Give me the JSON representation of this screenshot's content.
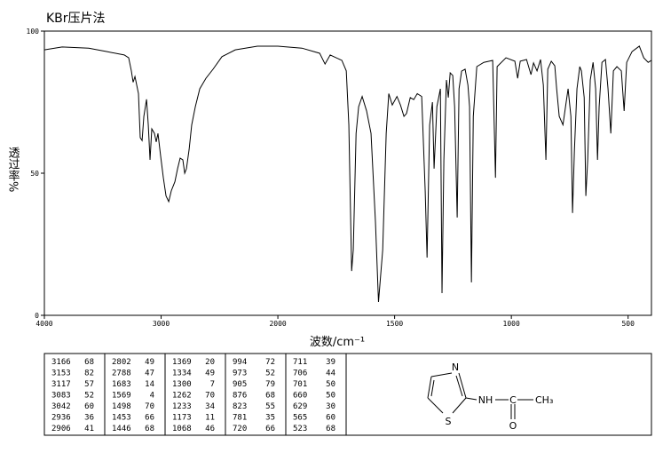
{
  "chart_data": {
    "type": "line",
    "title": "KBr压片法",
    "x_label": "波数/cm⁻¹",
    "y_label": "透过率%",
    "color": "#000000",
    "xlim": [
      4000,
      400
    ],
    "ylim": [
      0,
      100
    ],
    "x_scale_change": 2000,
    "xticks": [
      4000,
      3000,
      2000,
      1500,
      1000,
      500
    ],
    "yticks": [
      0,
      50,
      100
    ],
    "x": [
      4000,
      3848,
      3620,
      3468,
      3316,
      3278,
      3255,
      3240,
      3224,
      3194,
      3179,
      3163,
      3148,
      3125,
      3110,
      3095,
      3080,
      3057,
      3042,
      3027,
      3004,
      2981,
      2958,
      2935,
      2913,
      2882,
      2859,
      2837,
      2814,
      2798,
      2783,
      2760,
      2738,
      2707,
      2669,
      2616,
      2555,
      2479,
      2365,
      2175,
      2000,
      1897,
      1821,
      1798,
      1776,
      1726,
      1707,
      1696,
      1684,
      1677,
      1665,
      1654,
      1639,
      1620,
      1601,
      1582,
      1569,
      1551,
      1536,
      1525,
      1510,
      1490,
      1475,
      1460,
      1449,
      1433,
      1418,
      1403,
      1384,
      1369,
      1361,
      1350,
      1338,
      1331,
      1319,
      1304,
      1297,
      1289,
      1278,
      1270,
      1262,
      1251,
      1243,
      1232,
      1224,
      1213,
      1198,
      1186,
      1179,
      1171,
      1163,
      1148,
      1118,
      1080,
      1068,
      1061,
      1023,
      985,
      973,
      962,
      935,
      916,
      905,
      890,
      875,
      863,
      852,
      844,
      829,
      814,
      806,
      795,
      779,
      768,
      757,
      745,
      738,
      730,
      719,
      707,
      700,
      688,
      681,
      673,
      662,
      650,
      639,
      631,
      624,
      612,
      597,
      586,
      574,
      563,
      548,
      529,
      517,
      506,
      483,
      452,
      433,
      414,
      400
    ],
    "values": [
      93.4,
      94.4,
      94,
      92.8,
      91.6,
      90.6,
      86,
      82,
      84,
      78,
      62.5,
      61.5,
      70,
      76,
      67,
      54.7,
      65.6,
      64,
      61,
      64,
      56,
      48.4,
      42,
      40,
      43.8,
      47,
      51.6,
      55.3,
      54.7,
      50,
      51.6,
      58.4,
      67,
      73.4,
      79.7,
      83.4,
      86.6,
      91,
      93.4,
      94.7,
      94.7,
      94,
      92.2,
      88.4,
      91.6,
      89.7,
      86,
      67,
      15.6,
      23,
      64,
      73.4,
      77,
      71.9,
      64,
      32.8,
      4.7,
      23,
      64,
      78,
      74,
      77,
      74,
      70,
      71,
      76.6,
      75.9,
      78,
      77,
      43.8,
      20.3,
      67,
      75,
      51.6,
      73.4,
      79.7,
      7.8,
      54.7,
      82.8,
      76.6,
      85.3,
      84.4,
      73.4,
      34.4,
      79.7,
      85.9,
      86.6,
      81,
      73.4,
      11.6,
      70,
      87.5,
      89,
      89.7,
      48.4,
      87.5,
      90.6,
      89.4,
      83.4,
      89.4,
      90,
      84.7,
      88.8,
      86,
      90,
      81,
      54.7,
      86.6,
      89.4,
      87.8,
      79.7,
      70,
      67,
      73.4,
      79.7,
      70,
      36,
      57.8,
      79.7,
      87.5,
      86,
      76.6,
      42,
      54.7,
      82.8,
      89,
      79.7,
      54.7,
      73.4,
      89,
      90,
      79.7,
      64,
      86,
      87.5,
      86,
      71.9,
      89,
      92.8,
      94.7,
      90.6,
      89,
      89.7
    ]
  },
  "peak_table": [
    [
      [
        "3166",
        "68"
      ],
      [
        "3153",
        "82"
      ],
      [
        "3117",
        "57"
      ],
      [
        "3083",
        "52"
      ],
      [
        "3042",
        "60"
      ],
      [
        "2936",
        "36"
      ],
      [
        "2906",
        "41"
      ]
    ],
    [
      [
        "2802",
        "49"
      ],
      [
        "2788",
        "47"
      ],
      [
        "1683",
        "14"
      ],
      [
        "1569",
        "4"
      ],
      [
        "1498",
        "70"
      ],
      [
        "1453",
        "66"
      ],
      [
        "1446",
        "68"
      ]
    ],
    [
      [
        "1369",
        "20"
      ],
      [
        "1334",
        "49"
      ],
      [
        "1300",
        "7"
      ],
      [
        "1262",
        "70"
      ],
      [
        "1233",
        "34"
      ],
      [
        "1173",
        "11"
      ],
      [
        "1068",
        "46"
      ]
    ],
    [
      [
        "994",
        "72"
      ],
      [
        "973",
        "52"
      ],
      [
        "905",
        "79"
      ],
      [
        "876",
        "68"
      ],
      [
        "823",
        "55"
      ],
      [
        "781",
        "35"
      ],
      [
        "720",
        "66"
      ]
    ],
    [
      [
        "711",
        "39"
      ],
      [
        "706",
        "44"
      ],
      [
        "701",
        "50"
      ],
      [
        "660",
        "50"
      ],
      [
        "629",
        "30"
      ],
      [
        "565",
        "60"
      ],
      [
        "523",
        "68"
      ]
    ]
  ],
  "structure": {
    "atoms": [
      "N",
      "S",
      "NH",
      "C",
      "CH₃",
      "O"
    ]
  }
}
